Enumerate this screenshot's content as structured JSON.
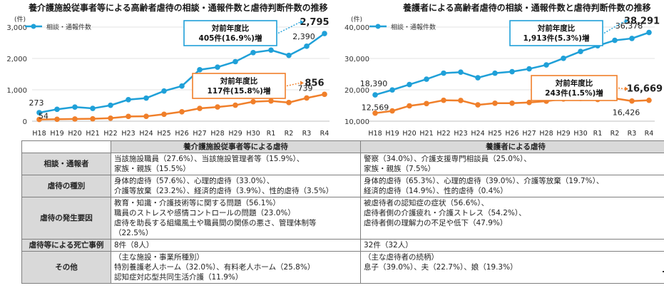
{
  "charts": [
    {
      "title": "養介護施設従事者等による高齢者虐待の相談・通報件数と虐待判断件数の推移",
      "unit": "(件)",
      "legend": "相談・通報件数",
      "callout_top": {
        "line1": "対前年度比",
        "line2": "405件(16.9%)増"
      },
      "callout_bottom": {
        "line1": "対前年度比",
        "line2": "117件(15.8%)増"
      }
    },
    {
      "title": "養護者による高齢者虐待の相談・通報件数と虐待判断件数の推移",
      "unit": "(件)",
      "legend": "相談・通報件数",
      "callout_top": {
        "line1": "対前年度比",
        "line2": "1,913件(5.3%)増"
      },
      "callout_bottom": {
        "line1": "対前年度比",
        "line2": "243件(1.5%)増"
      }
    }
  ],
  "chart_data": [
    {
      "type": "line",
      "title": "養介護施設従事者等による高齢者虐待の相談・通報件数と虐待判断件数の推移",
      "categories": [
        "H18",
        "H19",
        "H20",
        "H21",
        "H22",
        "H23",
        "H24",
        "H25",
        "H26",
        "H27",
        "H28",
        "H29",
        "H30",
        "R1",
        "R2",
        "R3",
        "R4"
      ],
      "ylim": [
        0,
        3000
      ],
      "yticks": [
        "0",
        "1,000",
        "2,000",
        "3,000"
      ],
      "series": [
        {
          "name": "相談・通報件数",
          "color": "#1fa0d8",
          "values": [
            273,
            379,
            451,
            408,
            506,
            687,
            736,
            962,
            1120,
            1640,
            1723,
            1898,
            2187,
            2267,
            2097,
            2390,
            2795
          ]
        },
        {
          "color": "#f07f2a",
          "values": [
            54,
            62,
            70,
            76,
            96,
            151,
            155,
            221,
            300,
            408,
            452,
            510,
            621,
            644,
            595,
            739,
            856
          ]
        }
      ],
      "data_labels": [
        {
          "series": 0,
          "index": 0,
          "text": "273"
        },
        {
          "series": 1,
          "index": 0,
          "text": "54"
        },
        {
          "series": 0,
          "index": 15,
          "text": "2,390"
        },
        {
          "series": 0,
          "index": 16,
          "text": "2,795"
        },
        {
          "series": 1,
          "index": 15,
          "text": "739"
        },
        {
          "series": 1,
          "index": 16,
          "text": "856"
        }
      ]
    },
    {
      "type": "line",
      "title": "養護者による高齢者虐待の相談・通報件数と虐待判断件数の推移",
      "categories": [
        "H18",
        "H19",
        "H20",
        "H21",
        "H22",
        "H23",
        "H24",
        "H25",
        "H26",
        "H27",
        "H28",
        "H29",
        "H30",
        "R1",
        "R2",
        "R3",
        "R4"
      ],
      "ylim": [
        10000,
        40000
      ],
      "yticks": [
        "10,000",
        "20,000",
        "30,000",
        "40,000"
      ],
      "series": [
        {
          "name": "相談・通報件数",
          "color": "#1fa0d8",
          "values": [
            18390,
            19971,
            21692,
            23404,
            25315,
            25636,
            23843,
            25310,
            25791,
            26688,
            27940,
            30040,
            32231,
            34057,
            35774,
            36378,
            38291
          ]
        },
        {
          "color": "#f07f2a",
          "values": [
            12569,
            13273,
            14889,
            15615,
            16668,
            16599,
            15202,
            15731,
            15739,
            15976,
            16384,
            17078,
            17249,
            16928,
            17281,
            16426,
            16669
          ]
        }
      ],
      "data_labels": [
        {
          "series": 0,
          "index": 0,
          "text": "18,390"
        },
        {
          "series": 1,
          "index": 0,
          "text": "12,569"
        },
        {
          "series": 0,
          "index": 15,
          "text": "36,378"
        },
        {
          "series": 0,
          "index": 16,
          "text": "38,291"
        },
        {
          "series": 1,
          "index": 15,
          "text": "16,426"
        },
        {
          "series": 1,
          "index": 16,
          "text": "16,669"
        }
      ]
    }
  ],
  "table": {
    "col1_header": "養介護施設従事者等による虐待",
    "col2_header": "養護者による虐待",
    "rows": [
      {
        "label": "相談・通報者",
        "c1": [
          "当該施設職員（27.6%）、当該施設管理者等（15.9%）、",
          "家族・親族（15.5%）"
        ],
        "c2": [
          "警察（34.0%）、介護支援専門相談員（25.0%）、",
          "家族・親族（7.5%）"
        ]
      },
      {
        "label": "虐待の種別",
        "c1": [
          "身体的虐待（57.6%）、心理的虐待（33.0%）、",
          "介護等放棄（23.2%）、経済的虐待（3.9%）、性的虐待（3.5%）"
        ],
        "c2": [
          "身体的虐待（65.3%）、心理的虐待（39.0%）、介護等放棄（19.7%）、",
          "経済的虐待（14.9%）、性的虐待（0.4%）"
        ]
      },
      {
        "label": "虐待の発生要因",
        "c1": [
          "教育・知識・介護技術等に関する問題（56.1%）",
          "職員のストレスや感情コントロールの問題（23.0%）",
          "虐待を助長する組織風土や職員間の関係の悪さ、管理体制等",
          "（22.5%）"
        ],
        "c2": [
          "被虐待者の認知症の症状（56.6%）、",
          "虐待者側の介護疲れ・介護ストレス（54.2%）、",
          "虐待者側の理解力の不足や低下（47.9%）"
        ]
      },
      {
        "label": "虐待等による死亡事例",
        "c1": [
          "8件（8人）"
        ],
        "c2": [
          "32件（32人）"
        ]
      },
      {
        "label": "その他",
        "c1": [
          "（主な施設・事業所種別）",
          "特別養護老人ホーム（32.0%）、有料老人ホーム（25.8%）",
          "認知症対応型共同生活介護（11.9%）"
        ],
        "c2": [
          "（主な虐待者の続柄）",
          "息子（39.0%）、夫（22.7%）、娘（19.3%）"
        ]
      }
    ]
  }
}
